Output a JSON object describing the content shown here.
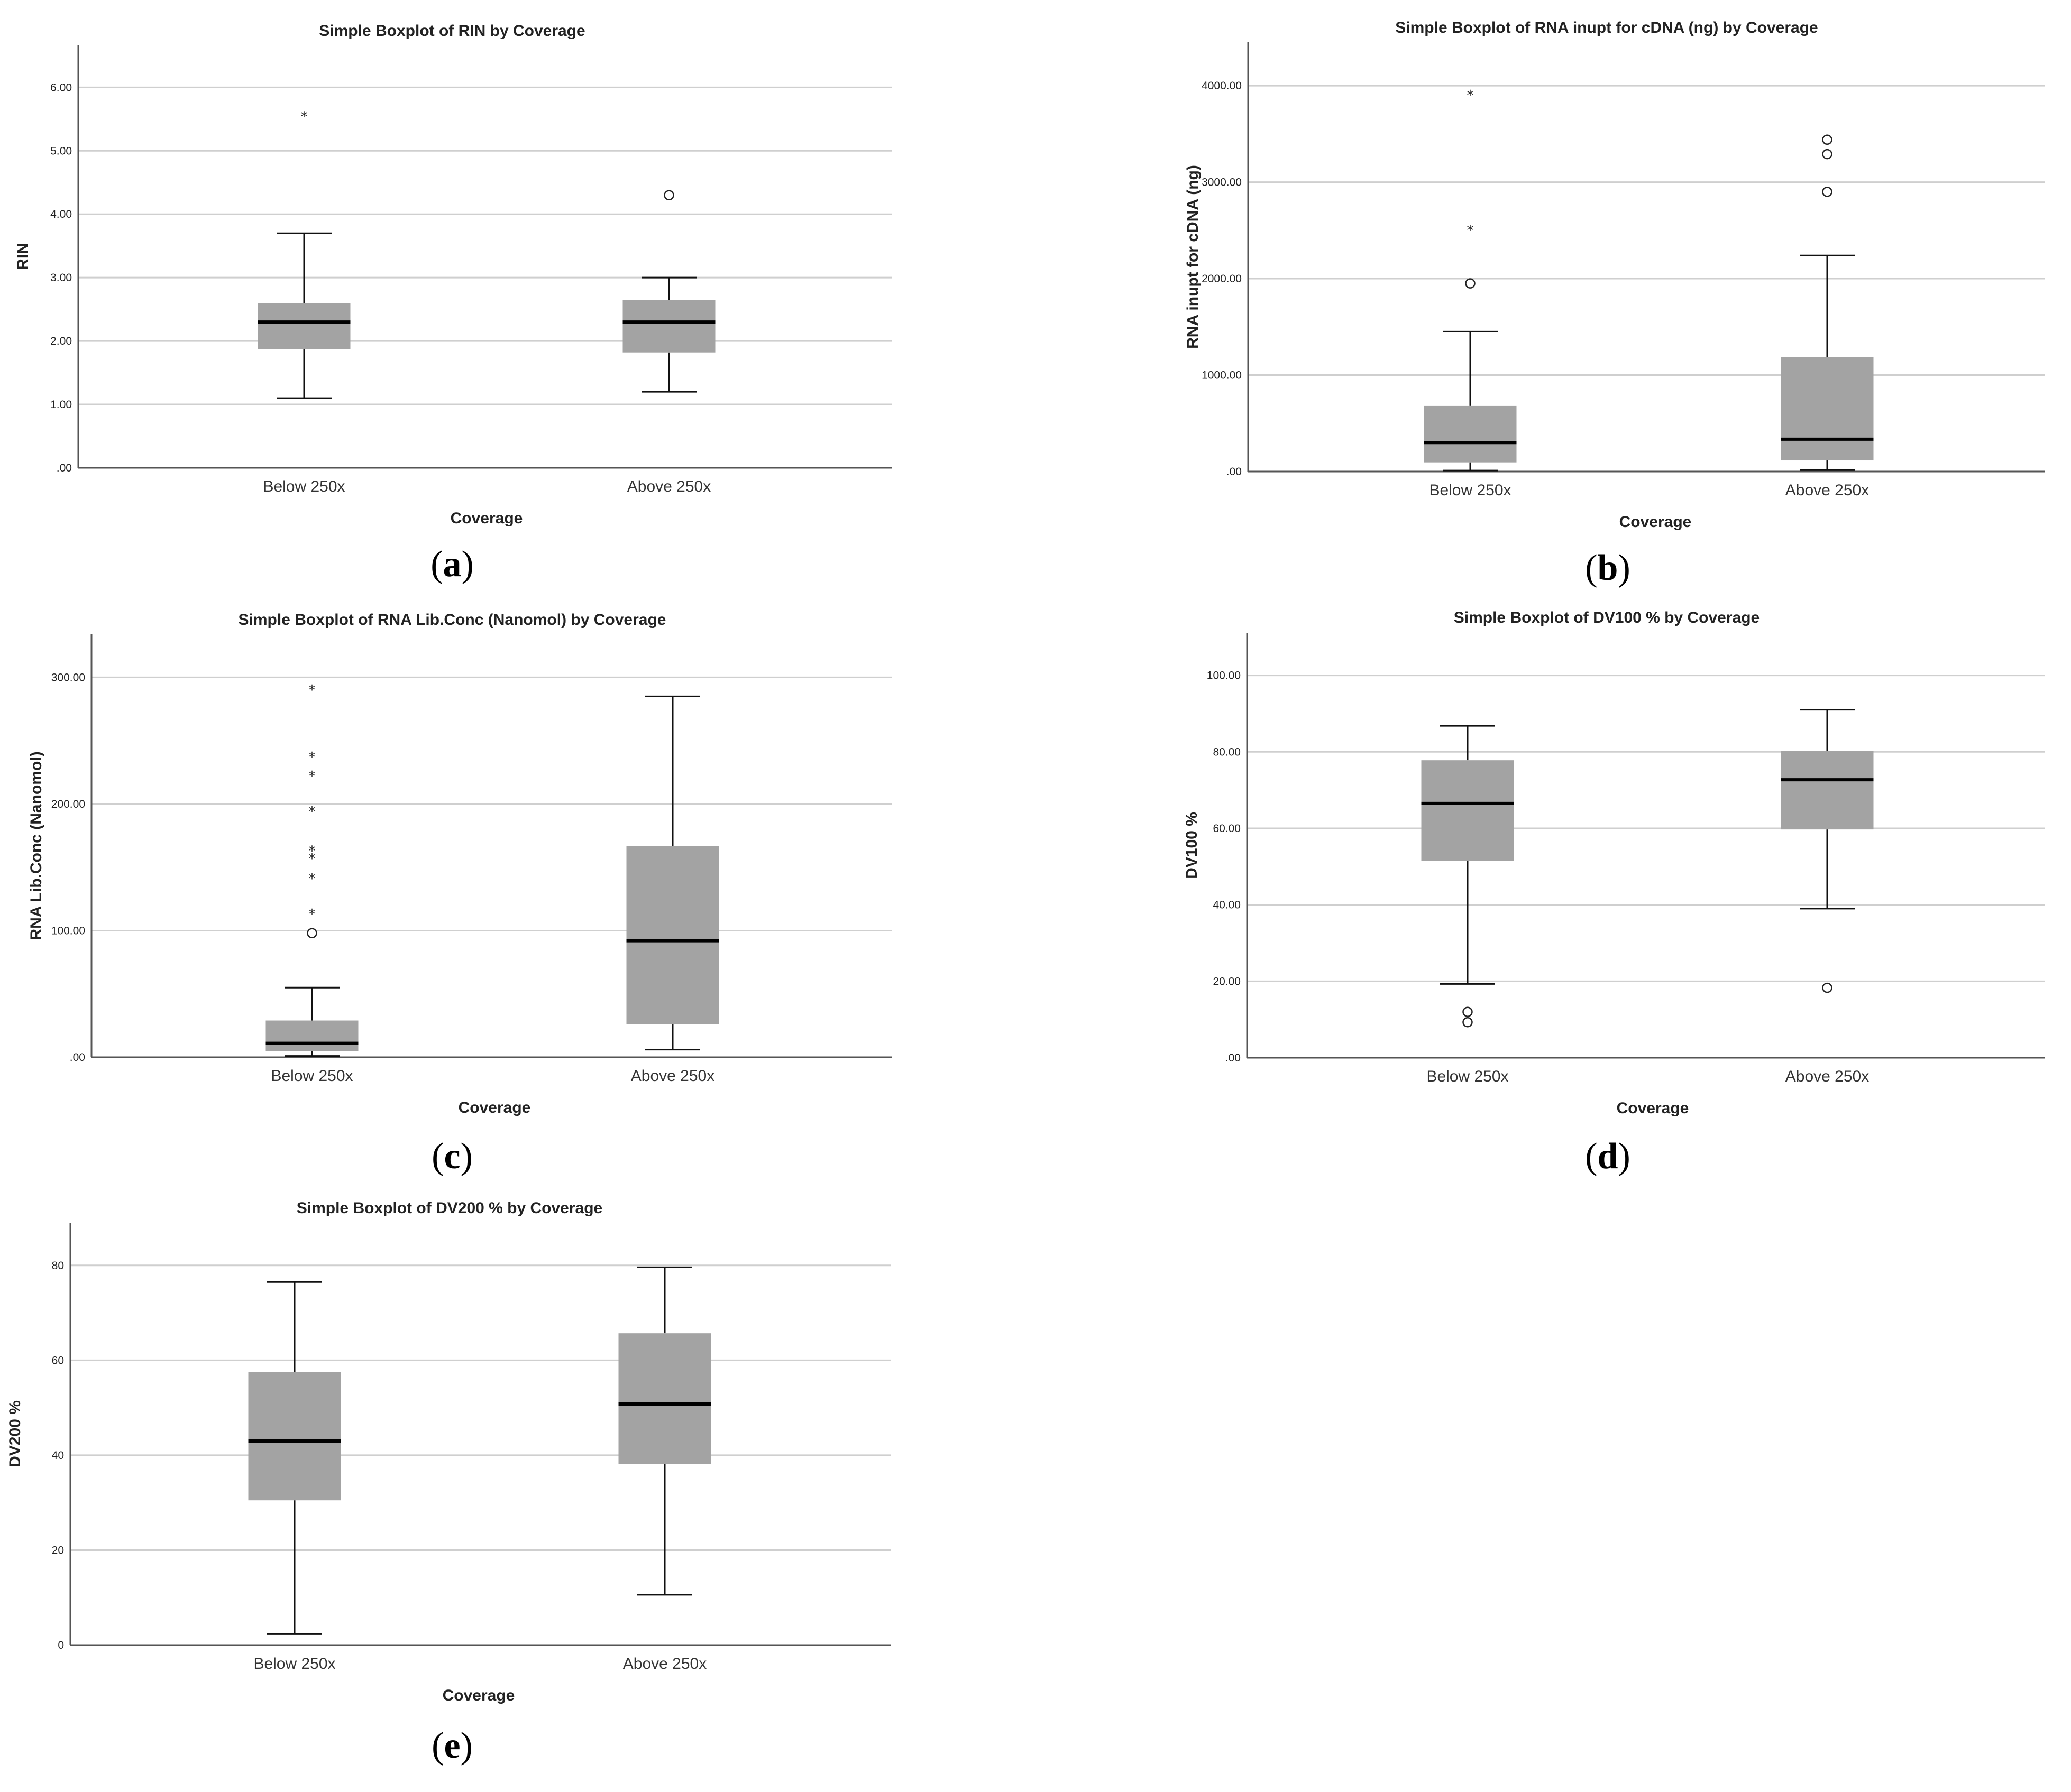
{
  "chart_data": [
    {
      "id": "a",
      "panel_label": "a",
      "type": "box",
      "title": "Simple Boxplot of RIN by Coverage",
      "xlabel": "Coverage",
      "ylabel": "RIN",
      "ylim": [
        0,
        6.67
      ],
      "yticks": [
        0,
        1,
        2,
        3,
        4,
        5,
        6
      ],
      "ytick_labels": [
        ".00",
        "1.00",
        "2.00",
        "3.00",
        "4.00",
        "5.00",
        "6.00"
      ],
      "grid": true,
      "categories": [
        "Below 250x",
        "Above 250x"
      ],
      "boxes": [
        {
          "category": "Below 250x",
          "whisker_low": 1.1,
          "q1": 1.87,
          "median": 2.3,
          "q3": 2.6,
          "whisker_high": 3.7,
          "outliers": [],
          "extremes": [
            5.6
          ]
        },
        {
          "category": "Above 250x",
          "whisker_low": 1.2,
          "q1": 1.82,
          "median": 2.3,
          "q3": 2.65,
          "whisker_high": 3.0,
          "outliers": [
            4.3
          ],
          "extremes": []
        }
      ]
    },
    {
      "id": "b",
      "panel_label": "b",
      "type": "box",
      "title": "Simple Boxplot of RNA inupt for cDNA (ng) by Coverage",
      "xlabel": "Coverage",
      "ylabel": "RNA inupt for cDNA (ng)",
      "ylim": [
        0,
        4450
      ],
      "yticks": [
        0,
        1000,
        2000,
        3000,
        4000
      ],
      "ytick_labels": [
        ".00",
        "1000.00",
        "2000.00",
        "3000.00",
        "4000.00"
      ],
      "grid": true,
      "categories": [
        "Below 250x",
        "Above 250x"
      ],
      "boxes": [
        {
          "category": "Below 250x",
          "whisker_low": 10,
          "q1": 95,
          "median": 300,
          "q3": 680,
          "whisker_high": 1450,
          "outliers": [
            1950
          ],
          "extremes": [
            2540,
            3940
          ]
        },
        {
          "category": "Above 250x",
          "whisker_low": 15,
          "q1": 115,
          "median": 335,
          "q3": 1185,
          "whisker_high": 2240,
          "outliers": [
            2900,
            3290,
            3440
          ],
          "extremes": []
        }
      ]
    },
    {
      "id": "c",
      "panel_label": "c",
      "type": "box",
      "title": "Simple Boxplot of RNA Lib.Conc (Nanomol) by Coverage",
      "xlabel": "Coverage",
      "ylabel": "RNA Lib.Conc (Nanomol)",
      "ylim": [
        0,
        334
      ],
      "yticks": [
        0,
        100,
        200,
        300
      ],
      "ytick_labels": [
        ".00",
        "100.00",
        "200.00",
        "300.00"
      ],
      "grid": true,
      "categories": [
        "Below 250x",
        "Above 250x"
      ],
      "boxes": [
        {
          "category": "Below 250x",
          "whisker_low": 1,
          "q1": 5,
          "median": 11,
          "q3": 29,
          "whisker_high": 55,
          "outliers": [
            98
          ],
          "extremes": [
            116,
            144,
            160,
            166,
            197,
            225,
            240,
            293
          ]
        },
        {
          "category": "Above 250x",
          "whisker_low": 6,
          "q1": 26,
          "median": 92,
          "q3": 167,
          "whisker_high": 285,
          "outliers": [],
          "extremes": []
        }
      ]
    },
    {
      "id": "d",
      "panel_label": "d",
      "type": "box",
      "title": "Simple Boxplot of DV100 %  by Coverage",
      "xlabel": "Coverage",
      "ylabel": "DV100 %",
      "ylim": [
        0,
        111
      ],
      "yticks": [
        0,
        20,
        40,
        60,
        80,
        100
      ],
      "ytick_labels": [
        ".00",
        "20.00",
        "40.00",
        "60.00",
        "80.00",
        "100.00"
      ],
      "grid": true,
      "categories": [
        "Below 250x",
        "Above 250x"
      ],
      "boxes": [
        {
          "category": "Below 250x",
          "whisker_low": 19.3,
          "q1": 51.5,
          "median": 66.5,
          "q3": 77.8,
          "whisker_high": 86.8,
          "outliers": [
            9.3,
            12.0
          ],
          "extremes": []
        },
        {
          "category": "Above 250x",
          "whisker_low": 39.0,
          "q1": 59.7,
          "median": 72.7,
          "q3": 80.3,
          "whisker_high": 91.0,
          "outliers": [
            18.3
          ],
          "extremes": []
        }
      ]
    },
    {
      "id": "e",
      "panel_label": "e",
      "type": "box",
      "title": "Simple Boxplot of DV200 %  by Coverage",
      "xlabel": "Coverage",
      "ylabel": "DV200 %",
      "ylim": [
        0,
        89
      ],
      "yticks": [
        0,
        20,
        40,
        60,
        80
      ],
      "ytick_labels": [
        "0",
        "20",
        "40",
        "60",
        "80"
      ],
      "grid": true,
      "categories": [
        "Below 250x",
        "Above 250x"
      ],
      "boxes": [
        {
          "category": "Below 250x",
          "whisker_low": 2.3,
          "q1": 30.5,
          "median": 43.0,
          "q3": 57.5,
          "whisker_high": 76.5,
          "outliers": [],
          "extremes": []
        },
        {
          "category": "Above 250x",
          "whisker_low": 10.6,
          "q1": 38.2,
          "median": 50.8,
          "q3": 65.7,
          "whisker_high": 79.6,
          "outliers": [],
          "extremes": []
        }
      ]
    }
  ],
  "symbols": {
    "outlier": "○",
    "extreme": "*"
  }
}
